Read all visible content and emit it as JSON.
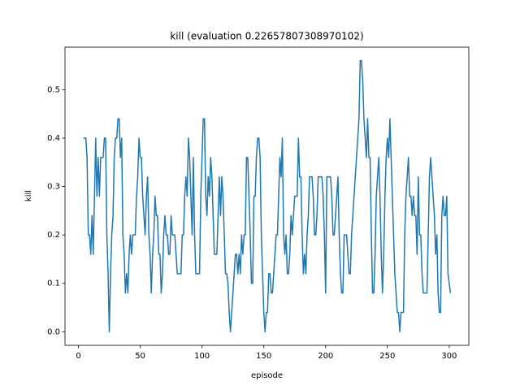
{
  "chart_data": {
    "type": "line",
    "title": "kill (evaluation 0.22657807308970102)",
    "xlabel": "episode",
    "ylabel": "kill",
    "x": [
      4,
      5,
      6,
      7,
      8,
      9,
      10,
      11,
      12,
      13,
      14,
      15,
      16,
      17,
      18,
      19,
      20,
      21,
      22,
      23,
      24,
      25,
      26,
      27,
      28,
      29,
      30,
      31,
      32,
      33,
      34,
      35,
      36,
      37,
      38,
      39,
      40,
      41,
      42,
      43,
      44,
      45,
      46,
      47,
      48,
      49,
      50,
      51,
      52,
      53,
      54,
      55,
      56,
      57,
      58,
      59,
      60,
      61,
      62,
      63,
      64,
      65,
      66,
      67,
      68,
      69,
      70,
      71,
      72,
      73,
      74,
      75,
      76,
      77,
      78,
      79,
      80,
      81,
      82,
      83,
      84,
      85,
      86,
      87,
      88,
      89,
      90,
      91,
      92,
      93,
      94,
      95,
      96,
      97,
      98,
      99,
      100,
      101,
      102,
      103,
      104,
      105,
      106,
      107,
      108,
      109,
      110,
      111,
      112,
      113,
      114,
      115,
      116,
      117,
      118,
      119,
      120,
      121,
      122,
      123,
      124,
      125,
      126,
      127,
      128,
      129,
      130,
      131,
      132,
      133,
      134,
      135,
      136,
      137,
      138,
      139,
      140,
      141,
      142,
      143,
      144,
      145,
      146,
      147,
      148,
      149,
      150,
      151,
      152,
      153,
      154,
      155,
      156,
      157,
      158,
      159,
      160,
      161,
      162,
      163,
      164,
      165,
      166,
      167,
      168,
      169,
      170,
      171,
      172,
      173,
      174,
      175,
      176,
      177,
      178,
      179,
      180,
      181,
      182,
      183,
      184,
      185,
      186,
      187,
      188,
      189,
      190,
      191,
      192,
      193,
      194,
      195,
      196,
      197,
      198,
      199,
      200,
      201,
      202,
      203,
      204,
      205,
      206,
      207,
      208,
      209,
      210,
      211,
      212,
      213,
      214,
      215,
      216,
      217,
      218,
      219,
      220,
      221,
      222,
      223,
      224,
      225,
      226,
      227,
      228,
      229,
      230,
      231,
      232,
      233,
      234,
      235,
      236,
      237,
      238,
      239,
      240,
      241,
      242,
      243,
      244,
      245,
      246,
      247,
      248,
      249,
      250,
      251,
      252,
      253,
      254,
      255,
      256,
      257,
      258,
      259,
      260,
      261,
      262,
      263,
      264,
      265,
      266,
      267,
      268,
      269,
      270,
      271,
      272,
      273,
      274,
      275,
      276,
      277,
      278,
      279,
      280,
      281,
      282,
      283,
      284,
      285,
      286,
      287,
      288,
      289,
      290,
      291,
      292,
      293,
      294,
      295,
      296,
      297,
      298,
      299,
      300,
      301
    ],
    "series": [
      {
        "name": "kill",
        "color": "#1f77b4",
        "values": [
          0.4,
          0.4,
          0.4,
          0.36,
          0.2,
          0.2,
          0.16,
          0.24,
          0.16,
          0.28,
          0.4,
          0.28,
          0.36,
          0.28,
          0.36,
          0.36,
          0.36,
          0.4,
          0.4,
          0.2,
          0.12,
          0,
          0.12,
          0.2,
          0.24,
          0.36,
          0.4,
          0.4,
          0.44,
          0.44,
          0.36,
          0.4,
          0.2,
          0.16,
          0.08,
          0.12,
          0.08,
          0.16,
          0.2,
          0.16,
          0.2,
          0.2,
          0.2,
          0.28,
          0.32,
          0.4,
          0.36,
          0.36,
          0.28,
          0.24,
          0.2,
          0.28,
          0.32,
          0.2,
          0.16,
          0.08,
          0.16,
          0.2,
          0.28,
          0.24,
          0.24,
          0.16,
          0.16,
          0.08,
          0.12,
          0.2,
          0.24,
          0.2,
          0.2,
          0.16,
          0.16,
          0.24,
          0.2,
          0.2,
          0.2,
          0.16,
          0.12,
          0.12,
          0.12,
          0.12,
          0.2,
          0.2,
          0.28,
          0.32,
          0.28,
          0.4,
          0.36,
          0.28,
          0.2,
          0.36,
          0.2,
          0.12,
          0.12,
          0.12,
          0.12,
          0.28,
          0.36,
          0.44,
          0.44,
          0.28,
          0.24,
          0.32,
          0.28,
          0.36,
          0.32,
          0.24,
          0.16,
          0.16,
          0.16,
          0.24,
          0.32,
          0.24,
          0.32,
          0.28,
          0.2,
          0.12,
          0.12,
          0.1,
          0.04,
          0,
          0.04,
          0.08,
          0.12,
          0.16,
          0.16,
          0.12,
          0.16,
          0.12,
          0.2,
          0.16,
          0.2,
          0.2,
          0.36,
          0.36,
          0.28,
          0.2,
          0.1,
          0.1,
          0.28,
          0.28,
          0.36,
          0.4,
          0.4,
          0.36,
          0.2,
          0.12,
          0.04,
          0,
          0.04,
          0.04,
          0.12,
          0.12,
          0.08,
          0.08,
          0.12,
          0.16,
          0.2,
          0.2,
          0.28,
          0.36,
          0.32,
          0.4,
          0.2,
          0.16,
          0.2,
          0.12,
          0.12,
          0.16,
          0.24,
          0.2,
          0.24,
          0.28,
          0.28,
          0.28,
          0.4,
          0.32,
          0.32,
          0.2,
          0.12,
          0.16,
          0.12,
          0.2,
          0.24,
          0.32,
          0.32,
          0.32,
          0.28,
          0.2,
          0.2,
          0.24,
          0.32,
          0.32,
          0.32,
          0.32,
          0.28,
          0.2,
          0.08,
          0.32,
          0.32,
          0.32,
          0.32,
          0.28,
          0.2,
          0.2,
          0.24,
          0.28,
          0.32,
          0.2,
          0.12,
          0.08,
          0.08,
          0.2,
          0.2,
          0.2,
          0.16,
          0.12,
          0.12,
          0.2,
          0.24,
          0.28,
          0.32,
          0.36,
          0.4,
          0.44,
          0.56,
          0.56,
          0.52,
          0.44,
          0.4,
          0.36,
          0.44,
          0.36,
          0.36,
          0.2,
          0.08,
          0.08,
          0.16,
          0.28,
          0.32,
          0.36,
          0.28,
          0.16,
          0.08,
          0.16,
          0.28,
          0.36,
          0.4,
          0.36,
          0.44,
          0.36,
          0.28,
          0.2,
          0.12,
          0.08,
          0.04,
          0.04,
          0,
          0.04,
          0.04,
          0.04,
          0.2,
          0.28,
          0.32,
          0.36,
          0.28,
          0.28,
          0.24,
          0.28,
          0.24,
          0.24,
          0.16,
          0.32,
          0.2,
          0.2,
          0.12,
          0.08,
          0.08,
          0.08,
          0.08,
          0.2,
          0.32,
          0.36,
          0.32,
          0.28,
          0.24,
          0.16,
          0.2,
          0.08,
          0.04,
          0.04,
          0.24,
          0.28,
          0.24,
          0.24,
          0.28,
          0.12,
          0.1,
          0.08
        ]
      }
    ],
    "xlim": [
      -10.85,
      315.85
    ],
    "xticks": [
      0,
      50,
      100,
      150,
      200,
      250,
      300
    ],
    "ylim": [
      -0.028,
      0.588
    ],
    "yticks": [
      {
        "value": 0,
        "label": "0.0"
      },
      0.1,
      0.2,
      0.3,
      0.4,
      0.5
    ]
  }
}
